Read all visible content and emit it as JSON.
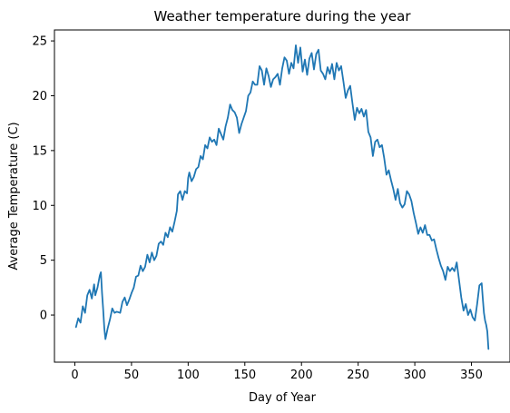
{
  "chart_data": {
    "type": "line",
    "title": "Weather temperature during the year",
    "xlabel": "Day of Year",
    "ylabel": "Average Temperature (C)",
    "xlim": [
      -18,
      384
    ],
    "ylim": [
      -4.3,
      26.0
    ],
    "xticks": [
      0,
      50,
      100,
      150,
      200,
      250,
      300,
      350
    ],
    "yticks": [
      0,
      5,
      10,
      15,
      20,
      25
    ],
    "grid": false,
    "series": [
      {
        "color": "#1f77b4",
        "points": [
          [
            1,
            -1.1
          ],
          [
            3,
            -0.3
          ],
          [
            5,
            -0.7
          ],
          [
            7,
            0.8
          ],
          [
            9,
            0.2
          ],
          [
            11,
            1.8
          ],
          [
            13,
            2.3
          ],
          [
            15,
            1.5
          ],
          [
            17,
            2.8
          ],
          [
            18,
            1.8
          ],
          [
            20,
            2.5
          ],
          [
            22,
            3.6
          ],
          [
            23,
            3.9
          ],
          [
            24,
            2.0
          ],
          [
            25,
            0.5
          ],
          [
            26,
            -1.2
          ],
          [
            27,
            -2.2
          ],
          [
            29,
            -1.2
          ],
          [
            31,
            -0.4
          ],
          [
            33,
            0.6
          ],
          [
            35,
            0.2
          ],
          [
            37,
            0.3
          ],
          [
            40,
            0.2
          ],
          [
            42,
            1.2
          ],
          [
            44,
            1.6
          ],
          [
            46,
            0.9
          ],
          [
            48,
            1.4
          ],
          [
            50,
            2.0
          ],
          [
            52,
            2.5
          ],
          [
            54,
            3.5
          ],
          [
            56,
            3.6
          ],
          [
            58,
            4.5
          ],
          [
            60,
            4.0
          ],
          [
            62,
            4.4
          ],
          [
            64,
            5.5
          ],
          [
            66,
            4.8
          ],
          [
            68,
            5.7
          ],
          [
            70,
            5.0
          ],
          [
            72,
            5.4
          ],
          [
            74,
            6.5
          ],
          [
            76,
            6.7
          ],
          [
            78,
            6.4
          ],
          [
            80,
            7.5
          ],
          [
            82,
            7.1
          ],
          [
            84,
            8.0
          ],
          [
            86,
            7.6
          ],
          [
            88,
            8.5
          ],
          [
            90,
            9.5
          ],
          [
            91,
            11.0
          ],
          [
            93,
            11.3
          ],
          [
            95,
            10.5
          ],
          [
            97,
            11.3
          ],
          [
            99,
            11.1
          ],
          [
            100,
            12.5
          ],
          [
            101,
            13.0
          ],
          [
            103,
            12.2
          ],
          [
            105,
            12.6
          ],
          [
            107,
            13.3
          ],
          [
            109,
            13.5
          ],
          [
            111,
            14.5
          ],
          [
            113,
            14.2
          ],
          [
            115,
            15.5
          ],
          [
            117,
            15.2
          ],
          [
            119,
            16.2
          ],
          [
            121,
            15.8
          ],
          [
            123,
            16.0
          ],
          [
            125,
            15.5
          ],
          [
            127,
            17.0
          ],
          [
            129,
            16.5
          ],
          [
            131,
            16.0
          ],
          [
            133,
            17.2
          ],
          [
            135,
            18.0
          ],
          [
            137,
            19.2
          ],
          [
            139,
            18.7
          ],
          [
            141,
            18.5
          ],
          [
            143,
            18.0
          ],
          [
            145,
            16.6
          ],
          [
            147,
            17.4
          ],
          [
            149,
            18.0
          ],
          [
            151,
            18.6
          ],
          [
            153,
            20.0
          ],
          [
            155,
            20.3
          ],
          [
            157,
            21.3
          ],
          [
            159,
            21.0
          ],
          [
            161,
            21.0
          ],
          [
            163,
            22.7
          ],
          [
            165,
            22.3
          ],
          [
            167,
            21.0
          ],
          [
            169,
            22.5
          ],
          [
            171,
            21.8
          ],
          [
            173,
            20.8
          ],
          [
            175,
            21.5
          ],
          [
            177,
            21.7
          ],
          [
            179,
            22.0
          ],
          [
            181,
            21.0
          ],
          [
            183,
            22.5
          ],
          [
            185,
            23.5
          ],
          [
            187,
            23.2
          ],
          [
            189,
            22.0
          ],
          [
            191,
            23.0
          ],
          [
            193,
            22.5
          ],
          [
            195,
            24.6
          ],
          [
            197,
            23.0
          ],
          [
            199,
            24.4
          ],
          [
            201,
            22.2
          ],
          [
            203,
            23.3
          ],
          [
            205,
            21.9
          ],
          [
            207,
            23.4
          ],
          [
            209,
            23.9
          ],
          [
            211,
            22.4
          ],
          [
            213,
            23.8
          ],
          [
            215,
            24.2
          ],
          [
            217,
            22.3
          ],
          [
            219,
            22.0
          ],
          [
            221,
            21.5
          ],
          [
            223,
            22.6
          ],
          [
            225,
            22.0
          ],
          [
            227,
            22.9
          ],
          [
            229,
            21.5
          ],
          [
            231,
            23.0
          ],
          [
            233,
            22.3
          ],
          [
            235,
            22.7
          ],
          [
            237,
            21.3
          ],
          [
            239,
            19.8
          ],
          [
            241,
            20.5
          ],
          [
            243,
            20.9
          ],
          [
            245,
            19.3
          ],
          [
            247,
            17.8
          ],
          [
            249,
            18.9
          ],
          [
            251,
            18.4
          ],
          [
            253,
            18.8
          ],
          [
            255,
            18.1
          ],
          [
            257,
            18.7
          ],
          [
            259,
            16.7
          ],
          [
            261,
            16.2
          ],
          [
            263,
            14.5
          ],
          [
            265,
            15.8
          ],
          [
            267,
            16.0
          ],
          [
            269,
            15.3
          ],
          [
            271,
            15.5
          ],
          [
            273,
            14.3
          ],
          [
            275,
            12.8
          ],
          [
            277,
            13.2
          ],
          [
            279,
            12.3
          ],
          [
            281,
            11.5
          ],
          [
            283,
            10.5
          ],
          [
            285,
            11.5
          ],
          [
            287,
            10.2
          ],
          [
            289,
            9.8
          ],
          [
            291,
            10.1
          ],
          [
            293,
            11.3
          ],
          [
            295,
            11.0
          ],
          [
            297,
            10.4
          ],
          [
            299,
            9.3
          ],
          [
            301,
            8.4
          ],
          [
            303,
            7.4
          ],
          [
            305,
            8.0
          ],
          [
            307,
            7.5
          ],
          [
            309,
            8.2
          ],
          [
            311,
            7.3
          ],
          [
            313,
            7.3
          ],
          [
            315,
            6.8
          ],
          [
            317,
            6.9
          ],
          [
            319,
            6.0
          ],
          [
            321,
            5.2
          ],
          [
            323,
            4.5
          ],
          [
            325,
            4.0
          ],
          [
            327,
            3.2
          ],
          [
            329,
            4.4
          ],
          [
            331,
            4.0
          ],
          [
            333,
            4.3
          ],
          [
            335,
            4.0
          ],
          [
            337,
            4.8
          ],
          [
            339,
            3.2
          ],
          [
            341,
            1.6
          ],
          [
            343,
            0.4
          ],
          [
            345,
            1.0
          ],
          [
            347,
            0.0
          ],
          [
            349,
            0.5
          ],
          [
            351,
            -0.2
          ],
          [
            353,
            -0.5
          ],
          [
            355,
            1.0
          ],
          [
            357,
            2.7
          ],
          [
            359,
            2.9
          ],
          [
            360,
            1.5
          ],
          [
            361,
            0.2
          ],
          [
            362,
            -0.5
          ],
          [
            363,
            -0.9
          ],
          [
            364,
            -1.5
          ],
          [
            365,
            -3.1
          ]
        ]
      }
    ]
  }
}
